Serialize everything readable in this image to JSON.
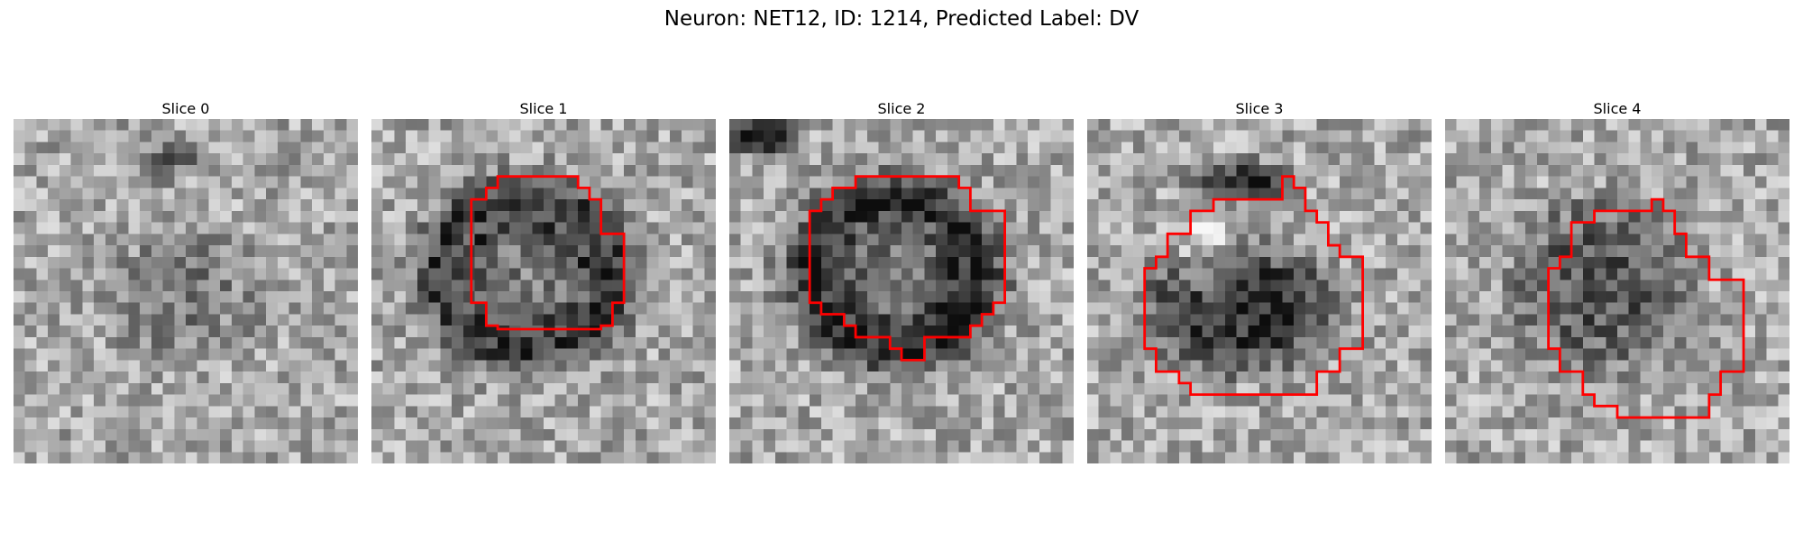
{
  "figure": {
    "title": "Neuron: NET12, ID: 1214, Predicted Label: DV"
  },
  "outline_color": "#ff0000",
  "panels": [
    {
      "title": "Slice 0",
      "has_outline": false
    },
    {
      "title": "Slice 1",
      "has_outline": true
    },
    {
      "title": "Slice 2",
      "has_outline": true
    },
    {
      "title": "Slice 3",
      "has_outline": true
    },
    {
      "title": "Slice 4",
      "has_outline": true
    }
  ]
}
